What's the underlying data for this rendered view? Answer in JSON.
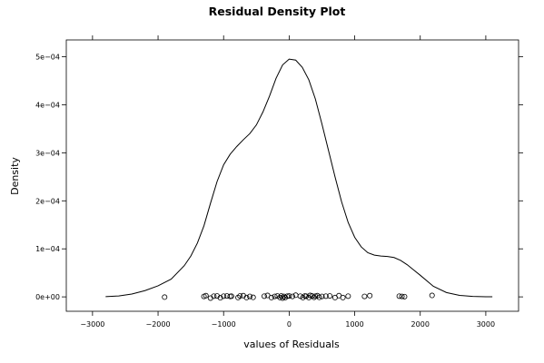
{
  "chart_data": {
    "type": "density",
    "title": "Residual Density Plot",
    "xlabel": "values of Residuals",
    "ylabel": "Density",
    "xlim": [
      -3400,
      3500
    ],
    "ylim": [
      -3e-05,
      0.000535
    ],
    "x_ticks": [
      {
        "value": -3000,
        "label": "−3000"
      },
      {
        "value": -2000,
        "label": "−2000"
      },
      {
        "value": -1000,
        "label": "−1000"
      },
      {
        "value": 0,
        "label": "0"
      },
      {
        "value": 1000,
        "label": "1000"
      },
      {
        "value": 2000,
        "label": "2000"
      },
      {
        "value": 3000,
        "label": "3000"
      }
    ],
    "y_ticks": [
      {
        "value": 0,
        "label": "0e+00"
      },
      {
        "value": 0.0001,
        "label": "1e−04"
      },
      {
        "value": 0.0002,
        "label": "2e−04"
      },
      {
        "value": 0.0003,
        "label": "3e−04"
      },
      {
        "value": 0.0004,
        "label": "4e−04"
      },
      {
        "value": 0.0005,
        "label": "5e−04"
      }
    ],
    "density_curve": {
      "x": [
        -2800,
        -2600,
        -2400,
        -2200,
        -2000,
        -1800,
        -1600,
        -1500,
        -1400,
        -1300,
        -1200,
        -1100,
        -1000,
        -900,
        -800,
        -700,
        -600,
        -500,
        -400,
        -300,
        -200,
        -100,
        0,
        100,
        200,
        300,
        400,
        500,
        600,
        700,
        800,
        900,
        1000,
        1100,
        1200,
        1300,
        1400,
        1500,
        1600,
        1700,
        1800,
        1900,
        2000,
        2200,
        2400,
        2600,
        2800,
        3000,
        3100
      ],
      "y": [
        5e-07,
        2e-06,
        6e-06,
        1.3e-05,
        2.3e-05,
        3.7e-05,
        6.5e-05,
        8.5e-05,
        0.000112,
        0.000148,
        0.000195,
        0.00024,
        0.000275,
        0.000297,
        0.000313,
        0.000327,
        0.00034,
        0.000358,
        0.000385,
        0.000418,
        0.000455,
        0.000483,
        0.000495,
        0.000493,
        0.000478,
        0.000452,
        0.000412,
        0.00036,
        0.000305,
        0.00025,
        0.000198,
        0.000155,
        0.000124,
        0.000104,
        9.2e-05,
        8.7e-05,
        8.5e-05,
        8.4e-05,
        8.2e-05,
        7.6e-05,
        6.7e-05,
        5.6e-05,
        4.5e-05,
        2.2e-05,
        9e-06,
        3e-06,
        1e-06,
        3e-07,
        2e-07
      ]
    },
    "residual_points": {
      "x": [
        -1900,
        -1300,
        -1270,
        -1200,
        -1150,
        -1100,
        -1050,
        -1000,
        -950,
        -900,
        -880,
        -780,
        -750,
        -700,
        -650,
        -600,
        -550,
        -380,
        -330,
        -270,
        -220,
        -180,
        -140,
        -120,
        -100,
        -80,
        -60,
        -30,
        0,
        50,
        100,
        170,
        210,
        240,
        260,
        300,
        320,
        350,
        380,
        400,
        430,
        460,
        500,
        560,
        620,
        700,
        760,
        820,
        900,
        1150,
        1230,
        1680,
        1720,
        1760,
        2180
      ],
      "y": [
        -5e-07,
        1e-06,
        2.5e-06,
        -2.5e-06,
        1.5e-06,
        2e-06,
        -2e-06,
        1.5e-06,
        2e-06,
        1e-06,
        1.5e-06,
        -1.5e-06,
        2e-06,
        2.5e-06,
        -1.5e-06,
        1e-06,
        -1e-06,
        1.5e-06,
        3e-06,
        -1.5e-06,
        1e-06,
        2e-06,
        -1.5e-06,
        2e-06,
        -2.5e-06,
        1e-06,
        -1.5e-06,
        1.5e-06,
        2e-06,
        1e-06,
        3.5e-06,
        1.5e-06,
        -1.5e-06,
        2e-06,
        1.5e-06,
        -1.5e-06,
        3e-06,
        2e-06,
        -1e-06,
        1.5e-06,
        2.5e-06,
        -1e-06,
        1e-06,
        1.5e-06,
        2e-06,
        -1.5e-06,
        2.5e-06,
        -1.5e-06,
        1.5e-06,
        1e-06,
        2.5e-06,
        1.5e-06,
        1e-06,
        5e-07,
        3e-06
      ]
    },
    "style": {
      "line_color": "#000000",
      "point_color": "#000000",
      "background": "#ffffff",
      "grid": false,
      "legend": "none"
    }
  }
}
